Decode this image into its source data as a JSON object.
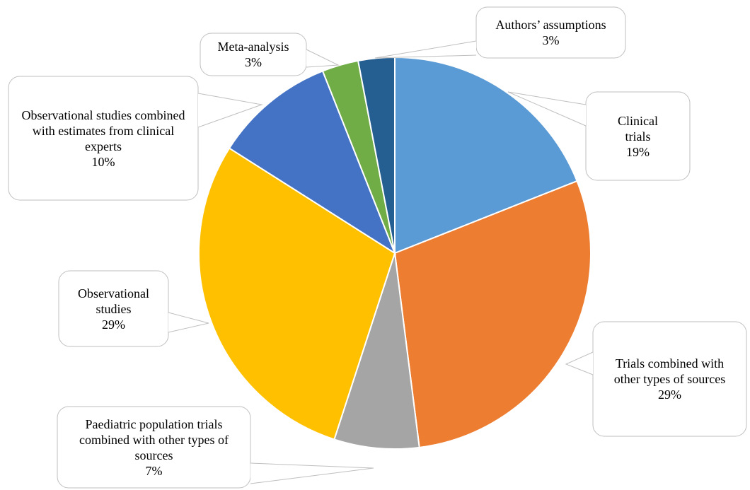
{
  "chart_data": {
    "type": "pie",
    "categories": [
      "Clinical trials",
      "Trials combined with other types of sources",
      "Paediatric population trials combined with other types of sources",
      "Observational studies",
      "Observational studies combined with estimates from clinical experts",
      "Meta-analysis",
      "Authors’ assumptions"
    ],
    "values": [
      19,
      29,
      7,
      29,
      10,
      3,
      3
    ],
    "value_labels": [
      "19%",
      "29%",
      "7%",
      "29%",
      "10%",
      "3%",
      "3%"
    ],
    "colors": [
      "#5b9bd5",
      "#ed7d31",
      "#a5a5a5",
      "#ffc000",
      "#4472c4",
      "#70ad47",
      "#255e91"
    ]
  }
}
